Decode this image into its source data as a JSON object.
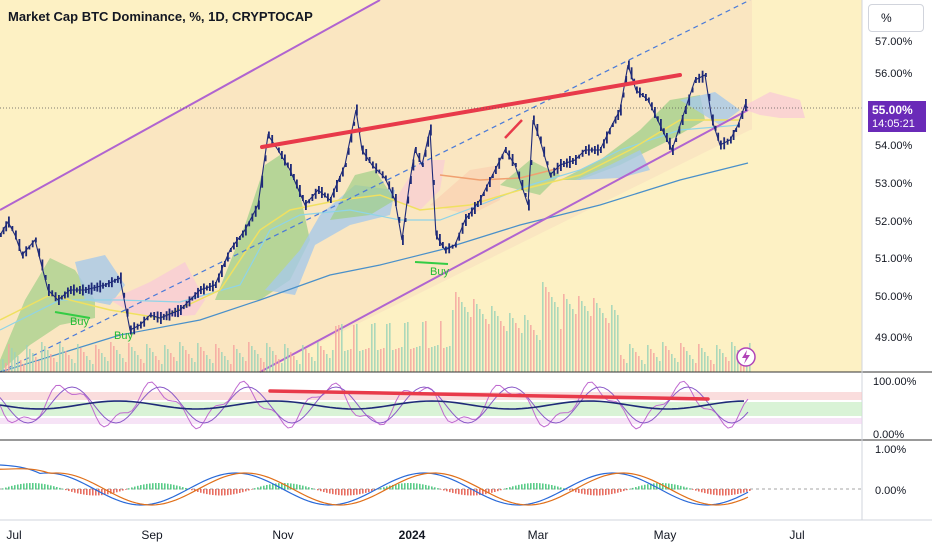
{
  "header": {
    "title": "Market Cap BTC Dominance, %, 1D, CRYPTOCAP",
    "scale_button": "%"
  },
  "price_tag": {
    "value": "55.00%",
    "countdown": "14:05:21",
    "color": "#6a2ab8"
  },
  "price_axis": {
    "ticks": [
      "57.00%",
      "56.00%",
      "55.00%",
      "54.00%",
      "53.00%",
      "52.00%",
      "51.00%",
      "50.00%",
      "49.00%"
    ]
  },
  "osc1_axis": {
    "ticks": [
      "100.00%",
      "0.00%"
    ]
  },
  "osc2_axis": {
    "ticks": [
      "1.00%",
      "0.00%"
    ]
  },
  "time_axis": {
    "labels": [
      "Jul",
      "Sep",
      "Nov",
      "2024",
      "Mar",
      "May",
      "Jul"
    ]
  },
  "signals": {
    "buy_label": "Buy"
  },
  "chart_data": {
    "type": "candlestick",
    "title": "Market Cap BTC Dominance, %, 1D, CRYPTOCAP",
    "x_range": [
      "Jul 2023",
      "Jul 2024"
    ],
    "ylim": [
      48.4,
      57.3
    ],
    "y_unit": "%",
    "last_value": 55.0,
    "close_path": [
      [
        "Jul 2023",
        51.6
      ],
      [
        "Jul 2023",
        52.0
      ],
      [
        "Jul 2023",
        51.2
      ],
      [
        "Aug 2023",
        50.0
      ],
      [
        "Aug 2023",
        49.8
      ],
      [
        "Aug 2023",
        50.1
      ],
      [
        "Aug 2023",
        49.0
      ],
      [
        "Sep 2023",
        49.3
      ],
      [
        "Sep 2023",
        49.6
      ],
      [
        "Sep 2023",
        50.0
      ],
      [
        "Oct 2023",
        50.3
      ],
      [
        "Oct 2023",
        51.2
      ],
      [
        "Oct 2023",
        52.5
      ],
      [
        "Nov 2023",
        53.9
      ],
      [
        "Nov 2023",
        53.2
      ],
      [
        "Nov 2023",
        52.6
      ],
      [
        "Nov 2023",
        52.4
      ],
      [
        "Dec 2023",
        53.6
      ],
      [
        "Dec 2023",
        53.0
      ],
      [
        "Dec 2023",
        51.5
      ],
      [
        "Dec 2023",
        52.6
      ],
      [
        "Jan 2024",
        51.3
      ],
      [
        "Jan 2024",
        52.1
      ],
      [
        "Jan 2024",
        51.7
      ],
      [
        "Feb 2024",
        53.1
      ],
      [
        "Feb 2024",
        53.6
      ],
      [
        "Feb 2024",
        52.4
      ],
      [
        "Mar 2024",
        53.8
      ],
      [
        "Mar 2024",
        53.9
      ],
      [
        "Mar 2024",
        53.6
      ],
      [
        "Apr 2024",
        54.0
      ],
      [
        "Apr 2024",
        56.2
      ],
      [
        "Apr 2024",
        55.3
      ],
      [
        "May 2024",
        54.4
      ],
      [
        "May 2024",
        55.3
      ],
      [
        "May 2024",
        55.9
      ],
      [
        "May 2024",
        54.4
      ],
      [
        "Jun 2024",
        54.0
      ],
      [
        "Jun 2024",
        55.0
      ]
    ],
    "trendlines": [
      {
        "name": "resistance",
        "from": [
          "Nov 2023",
          53.95
        ],
        "to": [
          "May 2024",
          55.95
        ]
      }
    ],
    "oscillator_1": {
      "ylim": [
        0,
        100
      ],
      "unit": "%"
    },
    "oscillator_2": {
      "ylim": [
        -1,
        1
      ],
      "unit": "%"
    },
    "grid": false,
    "legend": "none"
  }
}
